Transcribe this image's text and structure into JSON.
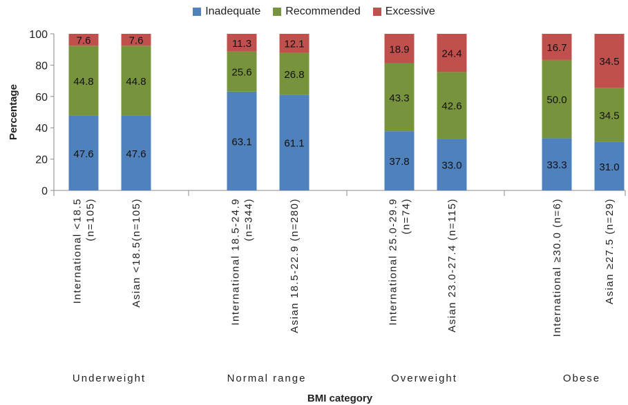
{
  "chart_data": {
    "type": "bar",
    "stacked": true,
    "xlabel": "BMI category",
    "ylabel": "Percentage",
    "ylim": [
      0,
      100
    ],
    "yticks": [
      0,
      20,
      40,
      60,
      80,
      100
    ],
    "grid": false,
    "legend_position": "top",
    "groups": [
      "Underweight",
      "Normal range",
      "Overweight",
      "Obese"
    ],
    "categories": [
      {
        "lines": [
          "International <18.5",
          "(n=105)"
        ],
        "group": 0
      },
      {
        "lines": [
          "Asian <18.5(n=105)"
        ],
        "group": 0
      },
      {
        "lines": [
          "International 18.5-24.9",
          "(n=344)"
        ],
        "group": 1
      },
      {
        "lines": [
          "Asian 18.5-22.9 (n=280)"
        ],
        "group": 1
      },
      {
        "lines": [
          "International 25.0-29.9",
          "(n=74)"
        ],
        "group": 2
      },
      {
        "lines": [
          "Asian 23.0-27.4 (n=115)"
        ],
        "group": 2
      },
      {
        "lines": [
          "International ≥30.0 (n=6)"
        ],
        "group": 3
      },
      {
        "lines": [
          "Asian ≥27.5 (n=29)"
        ],
        "group": 3
      }
    ],
    "series": [
      {
        "name": "Inadequate",
        "color": "#4f81bd",
        "values": [
          47.6,
          47.6,
          63.1,
          61.1,
          37.8,
          33.0,
          33.3,
          31.0
        ],
        "labels": [
          "47.6",
          "47.6",
          "63.1",
          "61.1",
          "37.8",
          "33.0",
          "33.3",
          "31.0"
        ]
      },
      {
        "name": "Recommended",
        "color": "#77933c",
        "values": [
          44.8,
          44.8,
          25.6,
          26.8,
          43.3,
          42.6,
          50.0,
          34.5
        ],
        "labels": [
          "44.8",
          "44.8",
          "25.6",
          "26.8",
          "43.3",
          "42.6",
          "50.0",
          "34.5"
        ]
      },
      {
        "name": "Excessive",
        "color": "#c0504d",
        "values": [
          7.6,
          7.6,
          11.3,
          12.1,
          18.9,
          24.4,
          16.7,
          34.5
        ],
        "labels": [
          "7.6",
          "7.6",
          "11.3",
          "12.1",
          "18.9",
          "24.4",
          "16.7",
          "34.5"
        ]
      }
    ]
  }
}
